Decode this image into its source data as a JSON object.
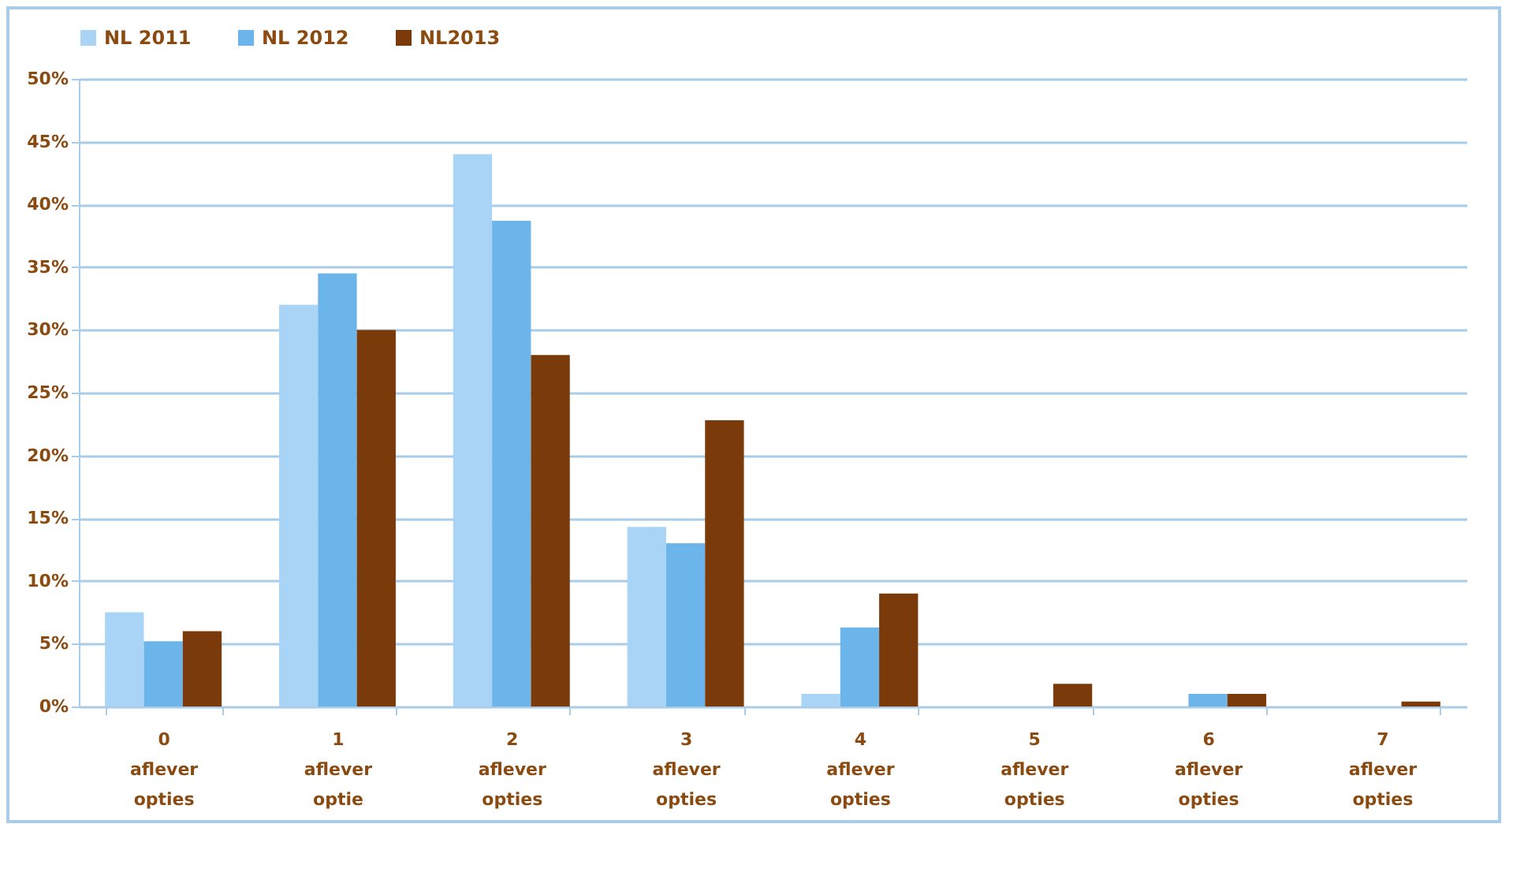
{
  "chart_data": {
    "type": "bar",
    "categories": [
      "0\naflever\nopties",
      "1\naflever\noptie",
      "2\naflever\nopties",
      "3\naflever\nopties",
      "4\naflever\nopties",
      "5\naflever\nopties",
      "6\naflever\nopties",
      "7\naflever\nopties"
    ],
    "series": [
      {
        "name": "NL 2011",
        "color": "#a9d4f5",
        "values": [
          7.5,
          32,
          44,
          14.3,
          1,
          0,
          0,
          0
        ]
      },
      {
        "name": "NL 2012",
        "color": "#6bb5ea",
        "values": [
          5.2,
          34.5,
          38.7,
          13,
          6.3,
          0,
          1,
          0
        ]
      },
      {
        "name": "NL2013",
        "color": "#7a3a0a",
        "values": [
          6,
          30,
          28,
          22.8,
          9,
          1.8,
          1,
          0.4
        ]
      }
    ],
    "ylim": [
      0,
      50
    ],
    "yticks": [
      {
        "value": 0,
        "label": "0%"
      },
      {
        "value": 5,
        "label": "5%"
      },
      {
        "value": 10,
        "label": "10%"
      },
      {
        "value": 15,
        "label": "15%"
      },
      {
        "value": 20,
        "label": "20%"
      },
      {
        "value": 25,
        "label": "25%"
      },
      {
        "value": 30,
        "label": "30%"
      },
      {
        "value": 35,
        "label": "35%"
      },
      {
        "value": 40,
        "label": "40%"
      },
      {
        "value": 45,
        "label": "45%"
      },
      {
        "value": 50,
        "label": "50%"
      }
    ],
    "grid": "y",
    "legend": "top"
  }
}
